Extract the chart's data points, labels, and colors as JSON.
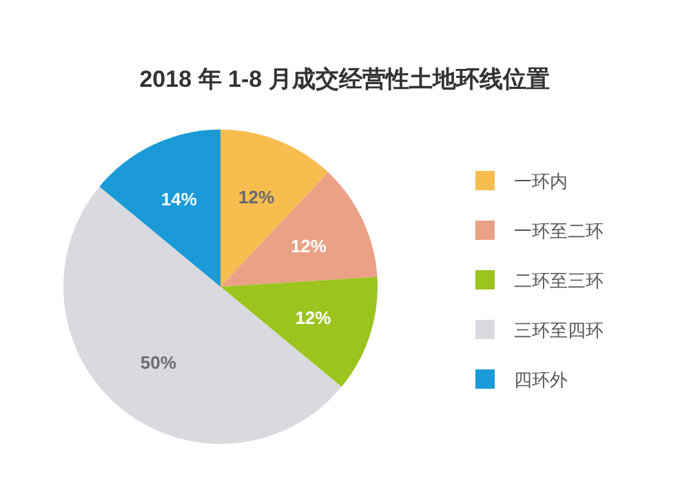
{
  "chart_data": {
    "type": "pie",
    "title": "2018 年 1-8 月成交经营性土地环线位置",
    "categories": [
      "一环内",
      "一环至二环",
      "二环至三环",
      "三环至四环",
      "四环外"
    ],
    "values": [
      12,
      12,
      12,
      50,
      14
    ],
    "colors": [
      "#f7bd4f",
      "#eaa186",
      "#9cc41f",
      "#d9dadf",
      "#1a9ad6"
    ],
    "value_labels": [
      "12%",
      "12%",
      "12%",
      "50%",
      "14%"
    ],
    "legend": "right"
  }
}
